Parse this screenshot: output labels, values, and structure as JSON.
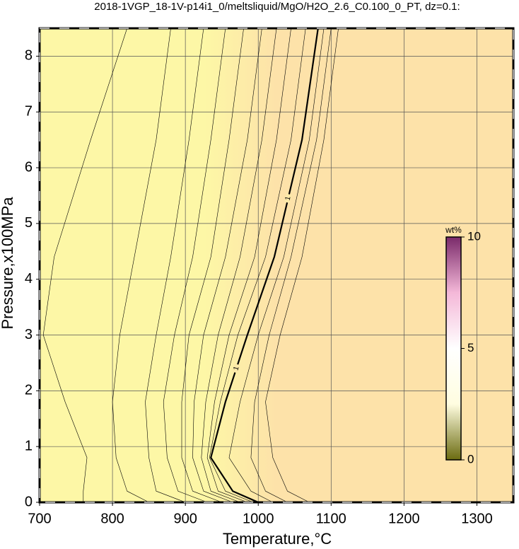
{
  "chart_data": {
    "type": "contour",
    "title": "2018-1VGP_18-1V-p14i1_0/meltsliquid/MgO/H2O_2.6_C0.100_0_PT, dz=0.1:",
    "xlabel": "Temperature,°C",
    "ylabel": "Pressure,x100MPa",
    "xlim": [
      700,
      1350
    ],
    "ylim": [
      0,
      8.5
    ],
    "xticks": [
      700,
      800,
      900,
      1000,
      1100,
      1200,
      1300
    ],
    "yticks": [
      0,
      1,
      2,
      3,
      4,
      5,
      6,
      7,
      8
    ],
    "grid": true,
    "background_colors": [
      "#fdf7a6",
      "#fde2a9"
    ],
    "contours": [
      {
        "x": [
          760,
          760,
          765,
          735,
          705,
          720,
          770,
          820
        ],
        "y": [
          0,
          0.2,
          0.8,
          1.8,
          3,
          4.4,
          6.5,
          8.5
        ]
      },
      {
        "x": [
          850,
          820,
          805,
          800,
          810,
          830,
          860,
          880
        ],
        "y": [
          0,
          0.2,
          0.8,
          1.8,
          3,
          4.4,
          6.5,
          8.5
        ]
      },
      {
        "x": [
          900,
          860,
          850,
          845,
          860,
          880,
          905,
          925
        ],
        "y": [
          0,
          0.2,
          0.8,
          1.8,
          3,
          4.4,
          6.5,
          8.5
        ]
      },
      {
        "x": [
          930,
          890,
          875,
          870,
          885,
          910,
          935,
          955
        ],
        "y": [
          0,
          0.2,
          0.8,
          1.8,
          3,
          4.4,
          6.5,
          8.5
        ]
      },
      {
        "x": [
          950,
          910,
          895,
          895,
          905,
          935,
          960,
          980
        ],
        "y": [
          0,
          0.2,
          0.8,
          1.8,
          3,
          4.4,
          6.5,
          8.5
        ]
      },
      {
        "x": [
          965,
          925,
          910,
          912,
          925,
          955,
          985,
          1005
        ],
        "y": [
          0,
          0.2,
          0.8,
          1.8,
          3,
          4.4,
          6.5,
          8.5
        ]
      },
      {
        "x": [
          975,
          935,
          922,
          928,
          945,
          975,
          1005,
          1025
        ],
        "y": [
          0,
          0.2,
          0.8,
          1.8,
          3,
          4.4,
          6.5,
          8.5
        ]
      },
      {
        "x": [
          985,
          945,
          930,
          940,
          960,
          995,
          1025,
          1045
        ],
        "y": [
          0,
          0.2,
          0.8,
          1.8,
          3,
          4.4,
          6.5,
          8.5
        ]
      },
      {
        "x": [
          993,
          955,
          933,
          948,
          972,
          1010,
          1045,
          1065
        ],
        "y": [
          0,
          0.2,
          0.8,
          1.8,
          3,
          4.4,
          6.5,
          8.5
        ]
      },
      {
        "x": [
          1000,
          965,
          935,
          955,
          985,
          1022,
          1060,
          1082
        ],
        "y": [
          0,
          0.2,
          0.8,
          1.8,
          3,
          4.4,
          6.5,
          8.5
        ],
        "label": "1",
        "bold": true
      },
      {
        "x": [
          1020,
          990,
          960,
          975,
          1000,
          1035,
          1070,
          1090
        ],
        "y": [
          0,
          0.2,
          0.8,
          1.8,
          3,
          4.4,
          6.5,
          8.5
        ]
      },
      {
        "x": [
          1040,
          1010,
          990,
          995,
          1015,
          1045,
          1080,
          1100
        ],
        "y": [
          0,
          0.2,
          0.8,
          1.8,
          3,
          4.4,
          6.5,
          8.5
        ]
      },
      {
        "x": [
          1070,
          1040,
          1020,
          1010,
          1030,
          1060,
          1090,
          1110
        ],
        "y": [
          0,
          0.2,
          0.8,
          1.8,
          3,
          4.4,
          6.5,
          8.5
        ]
      }
    ],
    "colorbar": {
      "label": "wt%",
      "lim": [
        0,
        10
      ],
      "ticks": [
        0,
        5,
        10
      ],
      "colors": [
        "#6b6b10",
        "#fffde0",
        "#ffffff",
        "#f4b8d8",
        "#7a2a6a"
      ]
    }
  }
}
